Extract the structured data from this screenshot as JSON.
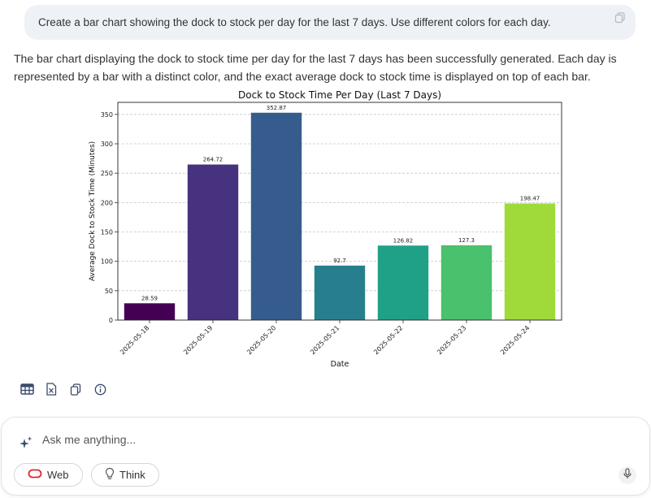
{
  "user_message": {
    "text": "Create a bar chart showing the dock to stock per day for the last 7 days. Use different colors for each day.",
    "copy_icon": "copy-icon"
  },
  "assistant": {
    "text": "The bar chart displaying the dock to stock time per day for the last 7 days has been successfully generated. Each day is represented by a bar with a distinct color, and the exact average dock to stock time is displayed on top of each bar."
  },
  "chart_data": {
    "type": "bar",
    "title": "Dock to Stock Time Per Day (Last 7 Days)",
    "xlabel": "Date",
    "ylabel": "Average Dock to Stock Time (Minutes)",
    "categories": [
      "2025-05-18",
      "2025-05-19",
      "2025-05-20",
      "2025-05-21",
      "2025-05-22",
      "2025-05-23",
      "2025-05-24"
    ],
    "values": [
      28.59,
      264.72,
      352.87,
      92.7,
      126.82,
      127.3,
      198.47
    ],
    "value_labels": [
      "28.59",
      "264.72",
      "352.87",
      "92.7",
      "126.82",
      "127.3",
      "198.47"
    ],
    "colors": [
      "#440154",
      "#46327e",
      "#365c8d",
      "#277f8e",
      "#1fa187",
      "#4ac16d",
      "#9fda3a"
    ],
    "yticks": [
      0,
      50,
      100,
      150,
      200,
      250,
      300,
      350
    ],
    "ylim": [
      0,
      370.5
    ],
    "grid": "y-dashed",
    "legend": "none"
  },
  "action_bar": {
    "icons": [
      "table-icon",
      "excel-icon",
      "copy-icon",
      "info-icon"
    ]
  },
  "composer": {
    "placeholder": "Ask me anything...",
    "value": "",
    "web_label": "Web",
    "think_label": "Think"
  }
}
